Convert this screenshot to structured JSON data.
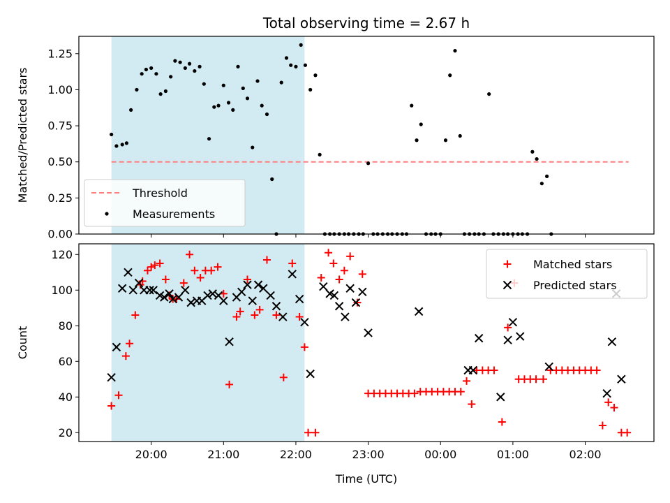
{
  "chart_data": {
    "type": "scatter",
    "title": "Total observing time = 2.67 h",
    "xlabel": "Time (UTC)",
    "x_ticks": [
      {
        "t": 20.0,
        "label": "20:00"
      },
      {
        "t": 21.0,
        "label": "21:00"
      },
      {
        "t": 22.0,
        "label": "22:00"
      },
      {
        "t": 23.0,
        "label": "23:00"
      },
      {
        "t": 24.0,
        "label": "00:00"
      },
      {
        "t": 25.0,
        "label": "01:00"
      },
      {
        "t": 26.0,
        "label": "02:00"
      }
    ],
    "shaded_interval": {
      "start": 19.45,
      "end": 22.12,
      "color": "#add8e6"
    },
    "colors": {
      "threshold": "#ff7f7f",
      "measurement": "#000000",
      "matched": "#ff0000",
      "predicted": "#000000"
    },
    "top": {
      "ylabel": "Matched/Predicted stars",
      "ylim": [
        0,
        1.37
      ],
      "yticks": [
        "0.00",
        "0.25",
        "0.50",
        "0.75",
        "1.00",
        "1.25"
      ],
      "threshold": {
        "name": "Threshold",
        "value": 0.5,
        "x_range": [
          19.45,
          26.6
        ]
      },
      "legend": {
        "position": "lower-left",
        "entries": [
          "Threshold",
          "Measurements"
        ]
      },
      "measurements": {
        "name": "Measurements",
        "points": [
          [
            19.45,
            0.69
          ],
          [
            19.52,
            0.61
          ],
          [
            19.6,
            0.62
          ],
          [
            19.66,
            0.63
          ],
          [
            19.72,
            0.86
          ],
          [
            19.8,
            1.0
          ],
          [
            19.87,
            1.11
          ],
          [
            19.93,
            1.14
          ],
          [
            20.0,
            1.15
          ],
          [
            20.07,
            1.11
          ],
          [
            20.13,
            0.97
          ],
          [
            20.2,
            0.99
          ],
          [
            20.27,
            1.09
          ],
          [
            20.33,
            1.2
          ],
          [
            20.4,
            1.19
          ],
          [
            20.47,
            1.15
          ],
          [
            20.53,
            1.18
          ],
          [
            20.6,
            1.13
          ],
          [
            20.67,
            1.16
          ],
          [
            20.73,
            1.04
          ],
          [
            20.8,
            0.66
          ],
          [
            20.87,
            0.88
          ],
          [
            20.93,
            0.89
          ],
          [
            21.0,
            1.03
          ],
          [
            21.07,
            0.91
          ],
          [
            21.13,
            0.86
          ],
          [
            21.2,
            1.16
          ],
          [
            21.27,
            1.01
          ],
          [
            21.33,
            0.94
          ],
          [
            21.4,
            0.6
          ],
          [
            21.47,
            1.06
          ],
          [
            21.53,
            0.89
          ],
          [
            21.6,
            0.83
          ],
          [
            21.67,
            0.38
          ],
          [
            21.73,
            0.0
          ],
          [
            21.8,
            1.05
          ],
          [
            21.87,
            1.22
          ],
          [
            21.93,
            1.17
          ],
          [
            22.0,
            1.16
          ],
          [
            22.07,
            1.31
          ],
          [
            22.13,
            1.17
          ],
          [
            22.2,
            1.0
          ],
          [
            22.27,
            1.1
          ],
          [
            22.33,
            0.55
          ],
          [
            22.4,
            0.0
          ],
          [
            22.47,
            0.0
          ],
          [
            22.53,
            0.0
          ],
          [
            22.6,
            0.0
          ],
          [
            22.67,
            0.0
          ],
          [
            22.73,
            0.0
          ],
          [
            22.8,
            0.0
          ],
          [
            22.87,
            0.0
          ],
          [
            22.93,
            0.0
          ],
          [
            23.0,
            0.49
          ],
          [
            23.07,
            0.0
          ],
          [
            23.13,
            0.0
          ],
          [
            23.2,
            0.0
          ],
          [
            23.27,
            0.0
          ],
          [
            23.33,
            0.0
          ],
          [
            23.4,
            0.0
          ],
          [
            23.47,
            0.0
          ],
          [
            23.53,
            0.0
          ],
          [
            23.6,
            0.89
          ],
          [
            23.67,
            0.65
          ],
          [
            23.73,
            0.76
          ],
          [
            23.8,
            0.0
          ],
          [
            23.87,
            0.0
          ],
          [
            23.93,
            0.0
          ],
          [
            24.0,
            0.0
          ],
          [
            24.07,
            0.65
          ],
          [
            24.13,
            1.1
          ],
          [
            24.2,
            1.27
          ],
          [
            24.27,
            0.68
          ],
          [
            24.33,
            0.0
          ],
          [
            24.4,
            0.0
          ],
          [
            24.47,
            0.0
          ],
          [
            24.53,
            0.0
          ],
          [
            24.6,
            0.0
          ],
          [
            24.67,
            0.97
          ],
          [
            24.73,
            0.0
          ],
          [
            24.8,
            0.0
          ],
          [
            24.87,
            0.0
          ],
          [
            24.93,
            0.0
          ],
          [
            25.0,
            0.0
          ],
          [
            25.07,
            0.0
          ],
          [
            25.13,
            0.0
          ],
          [
            25.2,
            0.0
          ],
          [
            25.27,
            0.57
          ],
          [
            25.33,
            0.52
          ],
          [
            25.4,
            0.35
          ],
          [
            25.47,
            0.4
          ],
          [
            25.53,
            0.0
          ]
        ]
      }
    },
    "bottom": {
      "ylabel": "Count",
      "ylim": [
        15,
        126
      ],
      "yticks": [
        "20",
        "40",
        "60",
        "80",
        "100",
        "120"
      ],
      "legend": {
        "position": "top-right",
        "entries": [
          "Matched stars",
          "Predicted stars"
        ]
      },
      "matched": {
        "name": "Matched stars",
        "points": [
          [
            19.45,
            35
          ],
          [
            19.55,
            41
          ],
          [
            19.65,
            63
          ],
          [
            19.7,
            70
          ],
          [
            19.78,
            86
          ],
          [
            19.85,
            103
          ],
          [
            19.88,
            105
          ],
          [
            19.95,
            111
          ],
          [
            20.0,
            113
          ],
          [
            20.05,
            114
          ],
          [
            20.12,
            115
          ],
          [
            20.2,
            106
          ],
          [
            20.25,
            97
          ],
          [
            20.3,
            95
          ],
          [
            20.35,
            95
          ],
          [
            20.45,
            104
          ],
          [
            20.53,
            120
          ],
          [
            20.6,
            111
          ],
          [
            20.68,
            107
          ],
          [
            20.75,
            111
          ],
          [
            20.83,
            111
          ],
          [
            20.92,
            113
          ],
          [
            21.0,
            98
          ],
          [
            21.08,
            47
          ],
          [
            21.18,
            85
          ],
          [
            21.23,
            88
          ],
          [
            21.33,
            106
          ],
          [
            21.43,
            86
          ],
          [
            21.5,
            89
          ],
          [
            21.6,
            117
          ],
          [
            21.73,
            86
          ],
          [
            21.83,
            51
          ],
          [
            21.95,
            115
          ],
          [
            22.05,
            85
          ],
          [
            22.12,
            68
          ],
          [
            22.17,
            20
          ],
          [
            22.27,
            20
          ],
          [
            22.35,
            107
          ],
          [
            22.45,
            121
          ],
          [
            22.52,
            115
          ],
          [
            22.6,
            106
          ],
          [
            22.67,
            111
          ],
          [
            22.75,
            119
          ],
          [
            22.85,
            93
          ],
          [
            22.92,
            109
          ],
          [
            23.0,
            42
          ],
          [
            23.08,
            42
          ],
          [
            23.16,
            42
          ],
          [
            23.24,
            42
          ],
          [
            23.32,
            42
          ],
          [
            23.4,
            42
          ],
          [
            23.48,
            42
          ],
          [
            23.56,
            42
          ],
          [
            23.64,
            42
          ],
          [
            23.72,
            43
          ],
          [
            23.8,
            43
          ],
          [
            23.88,
            43
          ],
          [
            23.96,
            43
          ],
          [
            24.04,
            43
          ],
          [
            24.12,
            43
          ],
          [
            24.2,
            43
          ],
          [
            24.28,
            43
          ],
          [
            24.36,
            49
          ],
          [
            24.43,
            36
          ],
          [
            24.5,
            55
          ],
          [
            24.58,
            55
          ],
          [
            24.66,
            55
          ],
          [
            24.74,
            55
          ],
          [
            24.85,
            26
          ],
          [
            24.93,
            79
          ],
          [
            25.02,
            104
          ],
          [
            25.08,
            50
          ],
          [
            25.16,
            50
          ],
          [
            25.24,
            50
          ],
          [
            25.32,
            50
          ],
          [
            25.42,
            50
          ],
          [
            25.52,
            55
          ],
          [
            25.6,
            55
          ],
          [
            25.68,
            55
          ],
          [
            25.76,
            55
          ],
          [
            25.84,
            55
          ],
          [
            25.92,
            55
          ],
          [
            26.0,
            55
          ],
          [
            26.08,
            55
          ],
          [
            26.16,
            55
          ],
          [
            26.24,
            24
          ],
          [
            26.32,
            37
          ],
          [
            26.4,
            34
          ],
          [
            26.5,
            20
          ],
          [
            26.58,
            20
          ]
        ]
      },
      "predicted": {
        "name": "Predicted stars",
        "points": [
          [
            19.45,
            51
          ],
          [
            19.52,
            68
          ],
          [
            19.6,
            101
          ],
          [
            19.68,
            110
          ],
          [
            19.75,
            100
          ],
          [
            19.83,
            104
          ],
          [
            19.9,
            100
          ],
          [
            19.98,
            100
          ],
          [
            20.03,
            100
          ],
          [
            20.12,
            97
          ],
          [
            20.18,
            96
          ],
          [
            20.25,
            98
          ],
          [
            20.3,
            95
          ],
          [
            20.38,
            96
          ],
          [
            20.47,
            100
          ],
          [
            20.55,
            93
          ],
          [
            20.63,
            94
          ],
          [
            20.7,
            94
          ],
          [
            20.78,
            97
          ],
          [
            20.85,
            98
          ],
          [
            20.93,
            97
          ],
          [
            21.0,
            94
          ],
          [
            21.08,
            71
          ],
          [
            21.18,
            96
          ],
          [
            21.25,
            99
          ],
          [
            21.33,
            103
          ],
          [
            21.4,
            94
          ],
          [
            21.48,
            103
          ],
          [
            21.55,
            101
          ],
          [
            21.65,
            97
          ],
          [
            21.73,
            91
          ],
          [
            21.82,
            85
          ],
          [
            21.95,
            109
          ],
          [
            22.05,
            95
          ],
          [
            22.12,
            82
          ],
          [
            22.2,
            53
          ],
          [
            22.38,
            102
          ],
          [
            22.47,
            98
          ],
          [
            22.53,
            97
          ],
          [
            22.6,
            91
          ],
          [
            22.68,
            85
          ],
          [
            22.75,
            101
          ],
          [
            22.83,
            93
          ],
          [
            22.92,
            99
          ],
          [
            23.0,
            76
          ],
          [
            23.7,
            88
          ],
          [
            24.38,
            55
          ],
          [
            24.45,
            55
          ],
          [
            24.53,
            73
          ],
          [
            24.83,
            40
          ],
          [
            24.93,
            72
          ],
          [
            25.0,
            82
          ],
          [
            25.1,
            74
          ],
          [
            25.5,
            57
          ],
          [
            26.3,
            42
          ],
          [
            26.37,
            71
          ],
          [
            26.43,
            98
          ],
          [
            26.5,
            50
          ]
        ]
      }
    }
  }
}
